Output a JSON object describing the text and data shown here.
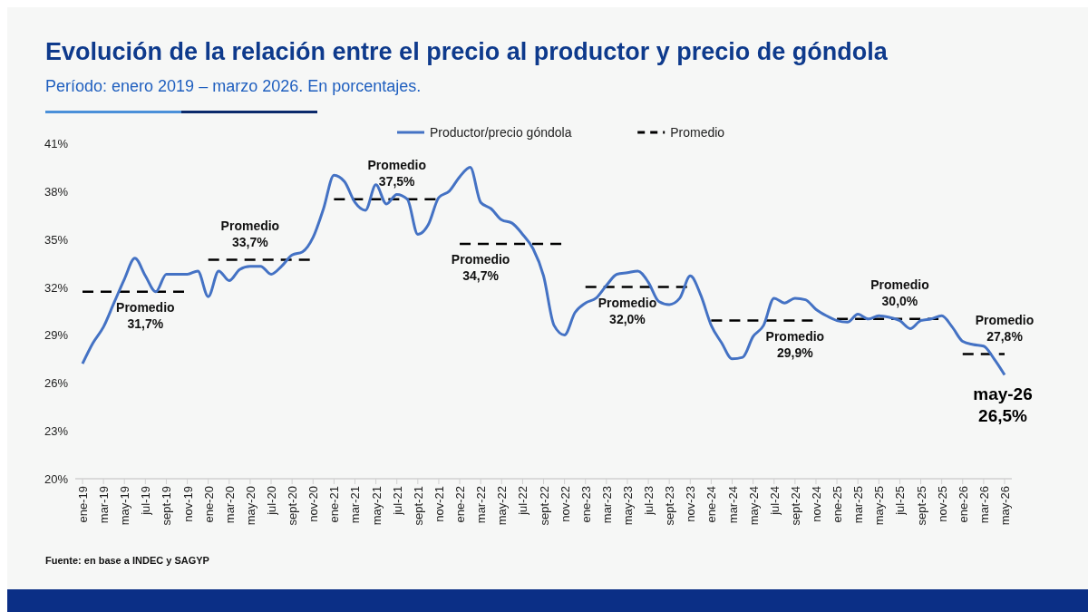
{
  "chart_data": {
    "type": "line",
    "title": "Evolución de la relación entre el precio al productor y precio de góndola",
    "subtitle": "Período: enero 2019 – marzo 2026. En porcentajes.",
    "categories": [
      "ene-19",
      null,
      "mar-19",
      null,
      "may-19",
      null,
      "jul-19",
      null,
      "sept-19",
      null,
      "nov-19",
      null,
      "ene-20",
      null,
      "mar-20",
      null,
      "may-20",
      null,
      "jul-20",
      null,
      "sept-20",
      null,
      "nov-20",
      null,
      "ene-21",
      null,
      "mar-21",
      null,
      "may-21",
      null,
      "jul-21",
      null,
      "sept-21",
      null,
      "nov-21",
      null,
      "ene-22",
      null,
      "mar-22",
      null,
      "may-22",
      null,
      "jul-22",
      null,
      "sept-22",
      null,
      "nov-22",
      null,
      "ene-23",
      null,
      "mar-23",
      null,
      "may-23",
      null,
      "jul-23",
      null,
      "sept-23",
      null,
      "nov-23",
      null,
      "ene-24",
      null,
      "mar-24",
      null,
      "may-24",
      null,
      "jul-24",
      null,
      "sept-24",
      null,
      "nov-24",
      null,
      "ene-25",
      null,
      "mar-25",
      null,
      "may-25",
      null,
      "jul-25",
      null,
      "sept-25",
      null,
      "nov-25",
      null,
      "ene-26",
      null,
      "mar-26",
      null,
      "may-26"
    ],
    "series": [
      {
        "name": "Productor/precio góndola",
        "color": "#4472c4",
        "line_style": "solid",
        "values": [
          27.2,
          28.5,
          29.5,
          31.0,
          32.5,
          33.8,
          32.7,
          31.7,
          32.8,
          32.8,
          32.8,
          33.0,
          31.4,
          33.0,
          32.4,
          33.1,
          33.3,
          33.3,
          32.8,
          33.3,
          34.0,
          34.2,
          35.1,
          36.9,
          39.0,
          38.6,
          37.3,
          36.8,
          38.4,
          37.2,
          37.8,
          37.5,
          35.3,
          35.9,
          37.6,
          38.0,
          38.9,
          39.5,
          37.3,
          36.9,
          36.2,
          36.0,
          35.3,
          34.4,
          32.7,
          29.6,
          29.0,
          30.4,
          31.0,
          31.3,
          32.1,
          32.8,
          32.9,
          33.0,
          32.3,
          31.1,
          30.9,
          31.3,
          32.7,
          31.5,
          29.6,
          28.5,
          27.5,
          27.6,
          28.9,
          29.6,
          31.3,
          31.0,
          31.3,
          31.2,
          30.6,
          30.2,
          29.9,
          29.8,
          30.3,
          30.0,
          30.2,
          30.1,
          29.9,
          29.4,
          29.9,
          30.0,
          30.2,
          29.5,
          28.6,
          28.4,
          28.3,
          27.5,
          26.5
        ]
      },
      {
        "name": "Promedio",
        "color": "#000000",
        "line_style": "dashed",
        "values": [
          31.7,
          31.7,
          31.7,
          31.7,
          31.7,
          31.7,
          31.7,
          31.7,
          31.7,
          31.7,
          31.7,
          null,
          33.7,
          33.7,
          33.7,
          33.7,
          33.7,
          33.7,
          33.7,
          33.7,
          33.7,
          33.7,
          33.7,
          null,
          37.5,
          37.5,
          37.5,
          37.5,
          37.5,
          37.5,
          37.5,
          37.5,
          37.5,
          37.5,
          37.5,
          null,
          34.7,
          34.7,
          34.7,
          34.7,
          34.7,
          34.7,
          34.7,
          34.7,
          34.7,
          34.7,
          34.7,
          null,
          32.0,
          32.0,
          32.0,
          32.0,
          32.0,
          32.0,
          32.0,
          32.0,
          32.0,
          32.0,
          32.0,
          null,
          29.9,
          29.9,
          29.9,
          29.9,
          29.9,
          29.9,
          29.9,
          29.9,
          29.9,
          29.9,
          29.9,
          null,
          30.0,
          30.0,
          30.0,
          30.0,
          30.0,
          30.0,
          30.0,
          30.0,
          30.0,
          30.0,
          30.0,
          null,
          27.8,
          27.8,
          27.8,
          27.8,
          27.8
        ]
      }
    ],
    "ylim": [
      20,
      41
    ],
    "yticks": [
      {
        "value": 20,
        "label": "20%"
      },
      {
        "value": 23,
        "label": "23%"
      },
      {
        "value": 26,
        "label": "26%"
      },
      {
        "value": 29,
        "label": "29%"
      },
      {
        "value": 32,
        "label": "32%"
      },
      {
        "value": 35,
        "label": "35%"
      },
      {
        "value": 38,
        "label": "38%"
      },
      {
        "value": 41,
        "label": "41%"
      }
    ],
    "grid": false,
    "legend": "top",
    "marker": "none",
    "annotations": [
      {
        "text": "Promedio\n31,7%",
        "x": "jul-19",
        "y": 31.7
      },
      {
        "text": "Promedio\n33,7%",
        "x": "may-20",
        "y": 33.7
      },
      {
        "text": "Promedio\n37,5%",
        "x": "jul-21",
        "y": 37.5
      },
      {
        "text": "Promedio\n34,7%",
        "x": "mar-22",
        "y": 34.7
      },
      {
        "text": "Promedio\n32,0%",
        "x": "may-23",
        "y": 32.0
      },
      {
        "text": "Promedio\n29,9%",
        "x": "sept-24",
        "y": 29.9
      },
      {
        "text": "Promedio\n30,0%",
        "x": "jul-25",
        "y": 30.0
      },
      {
        "text": "Promedio\n27,8%",
        "x": "may-26",
        "y": 27.8
      },
      {
        "text": "may-26\n26,5%",
        "x": "may-26",
        "y": 26.5
      },
      "Fuente: en base a INDEC y SAGYP"
    ]
  }
}
